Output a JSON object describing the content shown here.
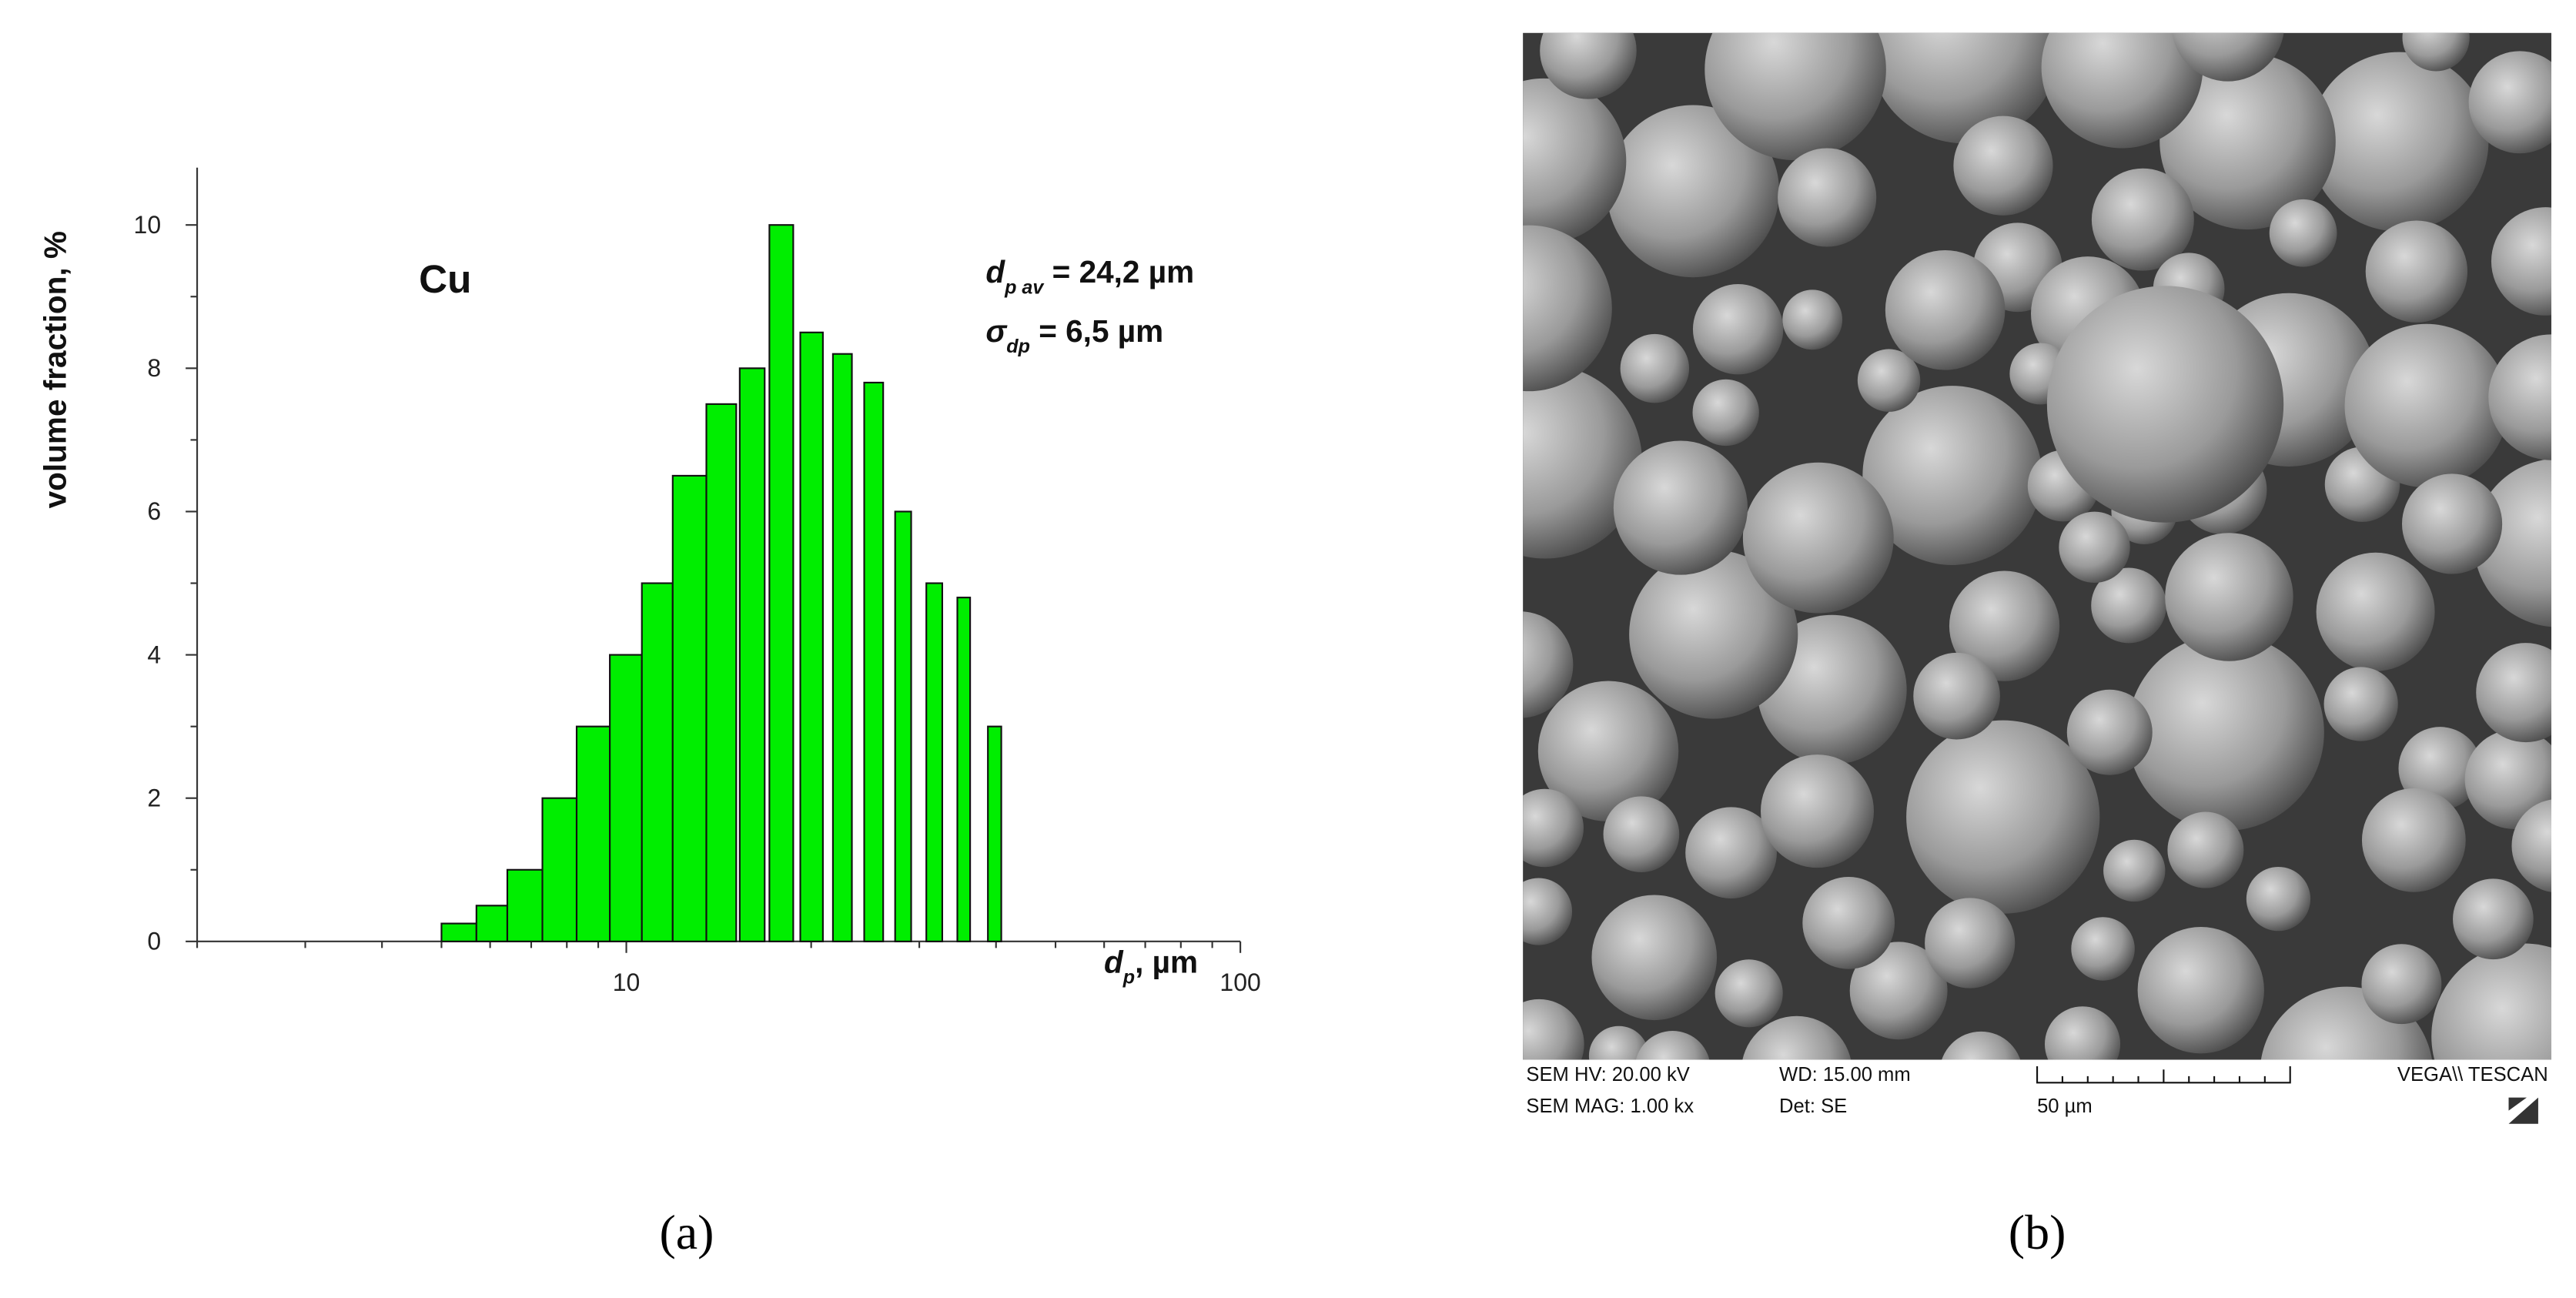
{
  "chart_data": {
    "type": "bar",
    "xlog": true,
    "y_label": "volume fraction, %",
    "x_label": {
      "symbol": "d",
      "sub": "p",
      "text": ", µm"
    },
    "series_label": "Cu",
    "annotations": [
      {
        "symbol": "d",
        "sub": "p av",
        "text": " = 24,2 µm"
      },
      {
        "symbol": "σ",
        "sub": "dp",
        "text": " = 6,5 µm"
      }
    ],
    "x_start": [
      5.0,
      5.7,
      6.4,
      7.3,
      8.3,
      9.4,
      10.6,
      11.9,
      13.5,
      15.3,
      17.1,
      19.2,
      21.7,
      24.4,
      27.4,
      30.8,
      34.6,
      38.8
    ],
    "x_end": [
      5.7,
      6.4,
      7.3,
      8.3,
      9.4,
      10.6,
      11.9,
      13.5,
      15.1,
      16.8,
      18.7,
      20.9,
      23.3,
      26.2,
      29.1,
      32.7,
      36.3,
      40.8
    ],
    "values": [
      0.25,
      0.5,
      1,
      2,
      3,
      4,
      5,
      6.5,
      7.5,
      8,
      10,
      8.5,
      8.2,
      7.8,
      6,
      5,
      4.8,
      3
    ],
    "color": "#00ee00",
    "xlim": [
      2,
      100
    ],
    "xticks": [
      10,
      100
    ],
    "xticks_minor": [
      2,
      3,
      4,
      5,
      6,
      7,
      8,
      9,
      20,
      30,
      40,
      50,
      60,
      70,
      80,
      90
    ],
    "ylim": [
      0,
      10.8
    ],
    "yticks": [
      0,
      2,
      4,
      6,
      8,
      10
    ],
    "yticks_minor": [
      1,
      3,
      5,
      7,
      9
    ]
  },
  "panels": [
    "(a)",
    "(b)"
  ],
  "sem_info": {
    "hv": "SEM HV: 20.00 kV",
    "wd": "WD: 15.00 mm",
    "mag": "SEM MAG: 1.00 kx",
    "det": "Det: SE",
    "scale": "50 µm",
    "brand": "VEGA\\\\ TESCAN"
  }
}
